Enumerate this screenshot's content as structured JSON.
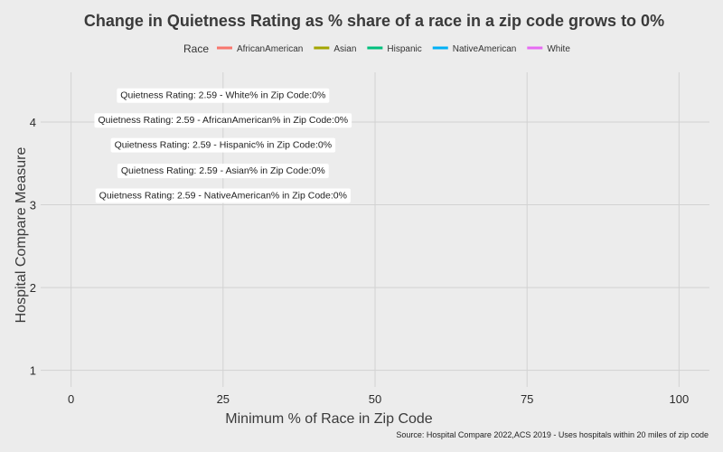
{
  "chart_data": {
    "type": "line",
    "title": "Change in Quietness Rating as % share of a race in a zip code grows to 0%",
    "xlabel": "Minimum % of Race in Zip Code",
    "ylabel": "Hospital Compare Measure",
    "xlim": [
      -5,
      105
    ],
    "ylim": [
      0.8,
      4.6
    ],
    "x_ticks": [
      0,
      25,
      50,
      75,
      100
    ],
    "y_ticks": [
      1,
      2,
      3,
      4
    ],
    "grid": true,
    "legend": {
      "title": "Race",
      "position": "top",
      "entries": [
        {
          "name": "AfricanAmerican",
          "color": "#F8766D"
        },
        {
          "name": "Asian",
          "color": "#A3A500"
        },
        {
          "name": "Hispanic",
          "color": "#00BF7D"
        },
        {
          "name": "NativeAmerican",
          "color": "#00B0F6"
        },
        {
          "name": "White",
          "color": "#E76BF3"
        }
      ]
    },
    "series": [
      {
        "name": "AfricanAmerican",
        "x": [
          0
        ],
        "y": [
          2.59
        ]
      },
      {
        "name": "Asian",
        "x": [
          0
        ],
        "y": [
          2.59
        ]
      },
      {
        "name": "Hispanic",
        "x": [
          0
        ],
        "y": [
          2.59
        ]
      },
      {
        "name": "NativeAmerican",
        "x": [
          0
        ],
        "y": [
          2.59
        ]
      },
      {
        "name": "White",
        "x": [
          0
        ],
        "y": [
          2.59
        ]
      }
    ],
    "annotations": [
      {
        "text": "Quietness Rating: 2.59 - White% in Zip Code:0%",
        "x": 25,
        "y": 4.33
      },
      {
        "text": "Quietness Rating: 2.59 - AfricanAmerican% in Zip Code:0%",
        "x": 25,
        "y": 4.03
      },
      {
        "text": "Quietness Rating: 2.59 - Hispanic% in Zip Code:0%",
        "x": 25,
        "y": 3.73
      },
      {
        "text": "Quietness Rating: 2.59 - Asian% in Zip Code:0%",
        "x": 25,
        "y": 3.42
      },
      {
        "text": "Quietness Rating: 2.59 - NativeAmerican% in Zip Code:0%",
        "x": 25,
        "y": 3.12
      }
    ],
    "caption": "Source: Hospital Compare 2022,ACS 2019 - Uses hospitals within 20 miles of zip code"
  }
}
